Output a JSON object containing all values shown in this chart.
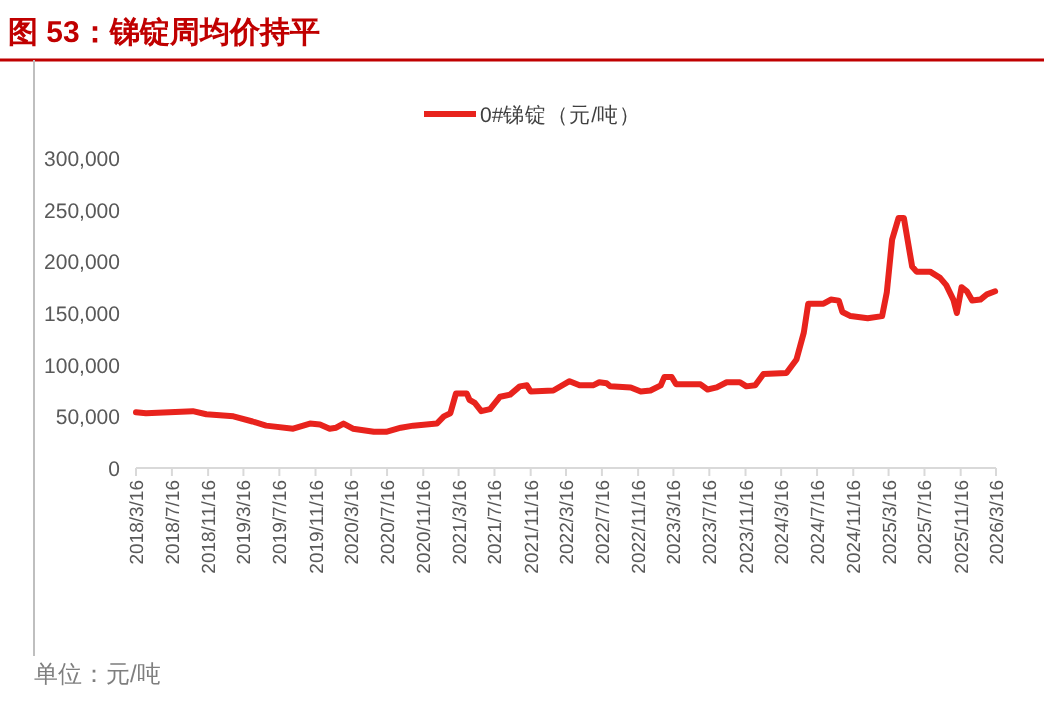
{
  "chart_data": {
    "type": "line",
    "title": "图 53：锑锭周均价持平",
    "x": [
      "2018-03-16",
      "2018-04-19",
      "2018-09-25",
      "2018-11-10",
      "2019-02-10",
      "2019-04-16",
      "2019-06-01",
      "2019-09-01",
      "2019-10-28",
      "2019-12-01",
      "2020-01-03",
      "2020-01-25",
      "2020-02-19",
      "2020-03-22",
      "2020-06-01",
      "2020-07-13",
      "2020-09-01",
      "2020-10-13",
      "2021-01-01",
      "2021-01-25",
      "2021-02-16",
      "2021-03-07",
      "2021-04-13",
      "2021-04-22",
      "2021-05-10",
      "2021-06-01",
      "2021-07-01",
      "2021-08-04",
      "2021-09-07",
      "2021-10-10",
      "2021-11-03",
      "2021-11-16",
      "2022-02-01",
      "2022-03-28",
      "2022-05-01",
      "2022-06-16",
      "2022-07-07",
      "2022-08-01",
      "2022-08-13",
      "2022-10-22",
      "2022-11-25",
      "2022-12-28",
      "2023-02-01",
      "2023-02-13",
      "2023-03-10",
      "2023-03-25",
      "2023-06-16",
      "2023-07-10",
      "2023-08-10",
      "2023-09-13",
      "2023-10-28",
      "2023-11-19",
      "2023-12-19",
      "2024-01-16",
      "2024-04-03",
      "2024-05-07",
      "2024-06-01",
      "2024-06-16",
      "2024-08-07",
      "2024-09-01",
      "2024-09-28",
      "2024-10-10",
      "2024-11-07",
      "2025-01-04",
      "2025-02-22",
      "2025-03-10",
      "2025-03-28",
      "2025-04-19",
      "2025-05-07",
      "2025-06-04",
      "2025-06-19",
      "2025-08-04",
      "2025-09-07",
      "2025-09-28",
      "2025-10-22",
      "2025-11-03",
      "2025-11-19",
      "2025-12-07",
      "2025-12-25",
      "2026-01-22",
      "2026-02-13",
      "2026-03-13"
    ],
    "series": [
      {
        "name": "0#锑锭（元/吨）",
        "color": "#e8231d",
        "values": [
          54000,
          53000,
          55000,
          52000,
          50000,
          45000,
          41000,
          38000,
          43000,
          42000,
          38000,
          39000,
          43000,
          38000,
          35000,
          35000,
          39000,
          41000,
          43000,
          50000,
          53000,
          72000,
          72000,
          66000,
          63000,
          55000,
          57000,
          69000,
          71000,
          79000,
          80000,
          74000,
          75000,
          84000,
          80000,
          80000,
          83000,
          82000,
          79000,
          78000,
          74000,
          75000,
          80000,
          88000,
          88000,
          81000,
          81000,
          76000,
          78000,
          83000,
          83000,
          79000,
          80000,
          91000,
          92000,
          105000,
          131000,
          159000,
          159000,
          163000,
          162000,
          151000,
          147000,
          145000,
          147000,
          170000,
          221000,
          242000,
          242000,
          195000,
          190000,
          190000,
          184000,
          177000,
          163000,
          150000,
          175000,
          171000,
          162000,
          163000,
          168000,
          171000
        ]
      }
    ],
    "xlim": [
      "2018-03-16",
      "2026-03-16"
    ],
    "xticks": [
      {
        "value": "2018-03-16",
        "label": "2018/3/16"
      },
      {
        "value": "2018-07-16",
        "label": "2018/7/16"
      },
      {
        "value": "2018-11-16",
        "label": "2018/11/16"
      },
      {
        "value": "2019-03-16",
        "label": "2019/3/16"
      },
      {
        "value": "2019-07-16",
        "label": "2019/7/16"
      },
      {
        "value": "2019-11-16",
        "label": "2019/11/16"
      },
      {
        "value": "2020-03-16",
        "label": "2020/3/16"
      },
      {
        "value": "2020-07-16",
        "label": "2020/7/16"
      },
      {
        "value": "2020-11-16",
        "label": "2020/11/16"
      },
      {
        "value": "2021-03-16",
        "label": "2021/3/16"
      },
      {
        "value": "2021-07-16",
        "label": "2021/7/16"
      },
      {
        "value": "2021-11-16",
        "label": "2021/11/16"
      },
      {
        "value": "2022-03-16",
        "label": "2022/3/16"
      },
      {
        "value": "2022-07-16",
        "label": "2022/7/16"
      },
      {
        "value": "2022-11-16",
        "label": "2022/11/16"
      },
      {
        "value": "2023-03-16",
        "label": "2023/3/16"
      },
      {
        "value": "2023-07-16",
        "label": "2023/7/16"
      },
      {
        "value": "2023-11-16",
        "label": "2023/11/16"
      },
      {
        "value": "2024-03-16",
        "label": "2024/3/16"
      },
      {
        "value": "2024-07-16",
        "label": "2024/7/16"
      },
      {
        "value": "2024-11-16",
        "label": "2024/11/16"
      },
      {
        "value": "2025-03-16",
        "label": "2025/3/16"
      },
      {
        "value": "2025-07-16",
        "label": "2025/7/16"
      },
      {
        "value": "2025-11-16",
        "label": "2025/11/16"
      },
      {
        "value": "2026-03-16",
        "label": "2026/3/16"
      }
    ],
    "ylim": [
      0,
      300000
    ],
    "yticks": [
      {
        "value": 0,
        "label": "0"
      },
      {
        "value": 50000,
        "label": "50,000"
      },
      {
        "value": 100000,
        "label": "100,000"
      },
      {
        "value": 150000,
        "label": "150,000"
      },
      {
        "value": 200000,
        "label": "200,000"
      },
      {
        "value": 250000,
        "label": "250,000"
      },
      {
        "value": 300000,
        "label": "300,000"
      }
    ],
    "grid": false,
    "legend": "top",
    "marker": "none",
    "line_style": "solid",
    "annotations": [
      "单位：元/吨"
    ]
  }
}
